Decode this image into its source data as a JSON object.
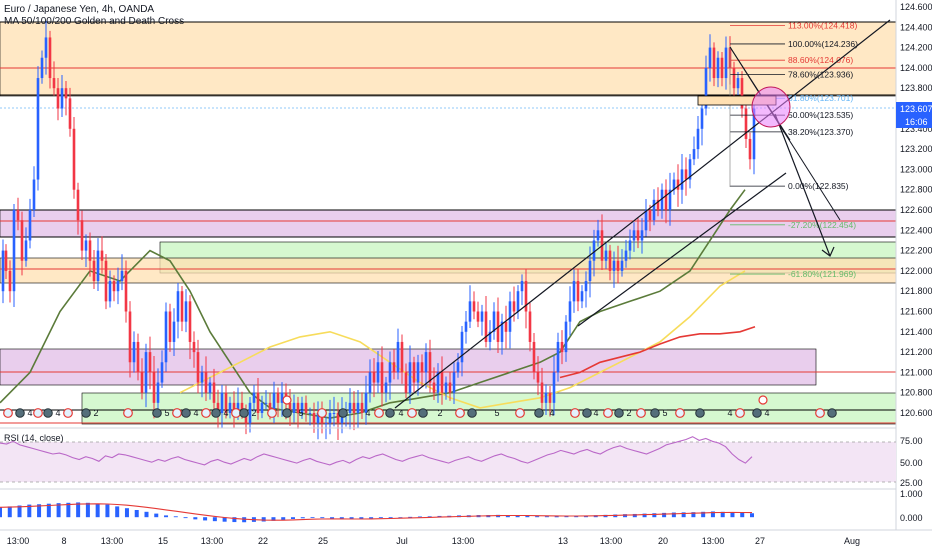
{
  "header": {
    "title": "Euro / Japanese Yen, 4h, OANDA",
    "indicator": "MA 50/100/200 Golden and Death Cross"
  },
  "rsi": {
    "label": "RSI (14, close)",
    "ticks": [
      "75.00",
      "50.00",
      "25.00"
    ]
  },
  "macd": {
    "ticks": [
      "1.000",
      "0.000"
    ]
  },
  "price_tag": {
    "value": "123.607",
    "countdown": "16:06"
  },
  "colors": {
    "up": "#2962ff",
    "down": "#f23645",
    "ma50": "#5b7b3a",
    "ma100": "#f7dc5b",
    "ma200": "#e53935",
    "orange_zone": "#ffe0b2",
    "purple_zone": "#e1bee7",
    "green_zone": "#c8f5c0"
  },
  "chart_data": {
    "type": "candlestick",
    "title": "Euro / Japanese Yen, 4h, OANDA",
    "y_ticks": [
      124.6,
      124.4,
      124.2,
      124.0,
      123.8,
      123.4,
      123.2,
      123.0,
      122.8,
      122.6,
      122.4,
      122.2,
      122.0,
      121.8,
      121.6,
      121.4,
      121.2,
      121.0,
      120.8,
      120.6
    ],
    "y_tick_labels": [
      "124.600",
      "124.400",
      "124.200",
      "124.000",
      "123.800",
      "123.400",
      "123.200",
      "123.000",
      "122.800",
      "122.600",
      "122.400",
      "122.200",
      "122.000",
      "121.800",
      "121.600",
      "121.400",
      "121.200",
      "121.000",
      "120.800",
      "120.600"
    ],
    "x_labels": [
      "13:00",
      "8",
      "13:00",
      "15",
      "13:00",
      "22",
      "25",
      "Jul",
      "13:00",
      "13",
      "13:00",
      "20",
      "13:00",
      "27",
      "Aug"
    ],
    "ylim": [
      120.5,
      124.65
    ],
    "close_path": [
      [
        0,
        121.8
      ],
      [
        3,
        122.2
      ],
      [
        6,
        122.0
      ],
      [
        10,
        121.8
      ],
      [
        14,
        122.6
      ],
      [
        18,
        122.5
      ],
      [
        22,
        122.1
      ],
      [
        26,
        122.3
      ],
      [
        30,
        122.6
      ],
      [
        34,
        122.9
      ],
      [
        38,
        123.9
      ],
      [
        42,
        124.1
      ],
      [
        46,
        124.3
      ],
      [
        50,
        123.9
      ],
      [
        54,
        123.8
      ],
      [
        58,
        123.6
      ],
      [
        62,
        123.8
      ],
      [
        66,
        123.7
      ],
      [
        70,
        123.4
      ],
      [
        74,
        122.8
      ],
      [
        78,
        122.5
      ],
      [
        82,
        122.2
      ],
      [
        86,
        122.3
      ],
      [
        90,
        122.1
      ],
      [
        94,
        121.9
      ],
      [
        98,
        122.2
      ],
      [
        102,
        122.1
      ],
      [
        106,
        121.7
      ],
      [
        110,
        121.9
      ],
      [
        114,
        121.8
      ],
      [
        118,
        121.9
      ],
      [
        122,
        122.0
      ],
      [
        126,
        121.6
      ],
      [
        130,
        121.1
      ],
      [
        134,
        121.3
      ],
      [
        138,
        121.0
      ],
      [
        142,
        120.8
      ],
      [
        146,
        121.2
      ],
      [
        150,
        121.0
      ],
      [
        154,
        120.7
      ],
      [
        158,
        120.9
      ],
      [
        162,
        121.1
      ],
      [
        166,
        121.6
      ],
      [
        170,
        121.3
      ],
      [
        174,
        121.5
      ],
      [
        178,
        121.8
      ],
      [
        182,
        121.5
      ],
      [
        186,
        121.7
      ],
      [
        190,
        121.3
      ],
      [
        194,
        121.2
      ],
      [
        198,
        120.9
      ],
      [
        202,
        121.0
      ],
      [
        206,
        120.8
      ],
      [
        210,
        120.9
      ],
      [
        214,
        120.7
      ],
      [
        218,
        120.6
      ],
      [
        222,
        120.8
      ],
      [
        226,
        120.6
      ],
      [
        230,
        120.7
      ],
      [
        234,
        120.6
      ],
      [
        238,
        120.7
      ],
      [
        242,
        120.6
      ],
      [
        246,
        120.5
      ],
      [
        250,
        120.7
      ],
      [
        254,
        120.8
      ],
      [
        258,
        120.6
      ],
      [
        262,
        120.7
      ],
      [
        266,
        120.7
      ],
      [
        270,
        120.6
      ],
      [
        274,
        120.8
      ],
      [
        278,
        120.7
      ],
      [
        282,
        120.8
      ],
      [
        286,
        120.7
      ],
      [
        290,
        120.6
      ],
      [
        294,
        120.7
      ],
      [
        298,
        120.6
      ],
      [
        302,
        120.7
      ],
      [
        306,
        120.6
      ],
      [
        310,
        120.6
      ],
      [
        314,
        120.5
      ],
      [
        318,
        120.6
      ],
      [
        322,
        120.5
      ],
      [
        326,
        120.5
      ],
      [
        330,
        120.6
      ],
      [
        334,
        120.6
      ],
      [
        338,
        120.5
      ],
      [
        342,
        120.6
      ],
      [
        346,
        120.6
      ],
      [
        350,
        120.7
      ],
      [
        354,
        120.6
      ],
      [
        358,
        120.7
      ],
      [
        362,
        120.6
      ],
      [
        366,
        120.8
      ],
      [
        370,
        121.0
      ],
      [
        374,
        120.9
      ],
      [
        378,
        121.1
      ],
      [
        382,
        120.8
      ],
      [
        386,
        120.9
      ],
      [
        390,
        121.1
      ],
      [
        394,
        121.0
      ],
      [
        398,
        121.3
      ],
      [
        402,
        121.0
      ],
      [
        406,
        120.8
      ],
      [
        410,
        121.1
      ],
      [
        414,
        120.9
      ],
      [
        418,
        121.1
      ],
      [
        422,
        121.0
      ],
      [
        426,
        121.2
      ],
      [
        430,
        120.9
      ],
      [
        434,
        120.8
      ],
      [
        438,
        121.0
      ],
      [
        442,
        120.8
      ],
      [
        446,
        120.9
      ],
      [
        450,
        120.8
      ],
      [
        454,
        121.0
      ],
      [
        458,
        121.1
      ],
      [
        462,
        121.4
      ],
      [
        466,
        121.5
      ],
      [
        470,
        121.7
      ],
      [
        474,
        121.6
      ],
      [
        478,
        121.5
      ],
      [
        482,
        121.6
      ],
      [
        486,
        121.3
      ],
      [
        490,
        121.4
      ],
      [
        494,
        121.6
      ],
      [
        498,
        121.3
      ],
      [
        502,
        121.5
      ],
      [
        506,
        121.4
      ],
      [
        510,
        121.7
      ],
      [
        514,
        121.6
      ],
      [
        518,
        121.8
      ],
      [
        522,
        121.9
      ],
      [
        526,
        121.6
      ],
      [
        530,
        121.3
      ],
      [
        534,
        121.0
      ],
      [
        538,
        120.9
      ],
      [
        542,
        120.7
      ],
      [
        546,
        120.8
      ],
      [
        550,
        120.7
      ],
      [
        554,
        121.0
      ],
      [
        558,
        121.3
      ],
      [
        562,
        121.2
      ],
      [
        566,
        121.5
      ],
      [
        570,
        121.7
      ],
      [
        574,
        121.9
      ],
      [
        578,
        121.7
      ],
      [
        582,
        121.8
      ],
      [
        586,
        121.9
      ],
      [
        590,
        122.1
      ],
      [
        594,
        122.3
      ],
      [
        598,
        122.4
      ],
      [
        602,
        122.1
      ],
      [
        606,
        122.2
      ],
      [
        610,
        122.0
      ],
      [
        614,
        122.1
      ],
      [
        618,
        122.0
      ],
      [
        622,
        122.1
      ],
      [
        626,
        122.2
      ],
      [
        630,
        122.3
      ],
      [
        634,
        122.4
      ],
      [
        638,
        122.3
      ],
      [
        642,
        122.4
      ],
      [
        646,
        122.6
      ],
      [
        650,
        122.5
      ],
      [
        654,
        122.7
      ],
      [
        658,
        122.6
      ],
      [
        662,
        122.8
      ],
      [
        666,
        122.6
      ],
      [
        670,
        122.8
      ],
      [
        674,
        122.9
      ],
      [
        678,
        122.8
      ],
      [
        682,
        123.0
      ],
      [
        686,
        122.9
      ],
      [
        690,
        123.1
      ],
      [
        694,
        123.2
      ],
      [
        698,
        123.4
      ],
      [
        702,
        123.6
      ],
      [
        706,
        124.0
      ],
      [
        710,
        124.2
      ],
      [
        714,
        123.9
      ],
      [
        718,
        124.1
      ],
      [
        722,
        123.9
      ],
      [
        726,
        124.2
      ],
      [
        730,
        124.0
      ],
      [
        734,
        123.8
      ],
      [
        738,
        123.9
      ],
      [
        742,
        123.6
      ],
      [
        746,
        123.3
      ],
      [
        750,
        123.1
      ],
      [
        754,
        123.6
      ]
    ],
    "moving_averages": [
      {
        "label": "MA 50",
        "points": [
          [
            0,
            120.7
          ],
          [
            30,
            121.0
          ],
          [
            60,
            121.6
          ],
          [
            90,
            122.0
          ],
          [
            120,
            121.9
          ],
          [
            150,
            122.2
          ],
          [
            170,
            122.1
          ],
          [
            190,
            121.8
          ],
          [
            210,
            121.4
          ],
          [
            230,
            121.1
          ],
          [
            250,
            120.8
          ],
          [
            270,
            120.65
          ],
          [
            300,
            120.6
          ],
          [
            330,
            120.55
          ],
          [
            360,
            120.6
          ],
          [
            390,
            120.7
          ],
          [
            420,
            120.75
          ],
          [
            450,
            120.8
          ],
          [
            480,
            120.9
          ],
          [
            510,
            121.0
          ],
          [
            540,
            121.1
          ],
          [
            560,
            121.2
          ],
          [
            580,
            121.5
          ],
          [
            600,
            121.6
          ],
          [
            630,
            121.7
          ],
          [
            660,
            121.8
          ],
          [
            690,
            122.0
          ],
          [
            710,
            122.3
          ],
          [
            730,
            122.6
          ],
          [
            745,
            122.8
          ]
        ]
      },
      {
        "label": "MA 100",
        "points": [
          [
            180,
            120.8
          ],
          [
            210,
            120.95
          ],
          [
            240,
            121.1
          ],
          [
            270,
            121.25
          ],
          [
            300,
            121.35
          ],
          [
            330,
            121.4
          ],
          [
            360,
            121.3
          ],
          [
            390,
            121.1
          ],
          [
            420,
            120.9
          ],
          [
            450,
            120.75
          ],
          [
            480,
            120.65
          ],
          [
            510,
            120.7
          ],
          [
            540,
            120.75
          ],
          [
            570,
            120.85
          ],
          [
            600,
            121.0
          ],
          [
            630,
            121.15
          ],
          [
            660,
            121.3
          ],
          [
            690,
            121.55
          ],
          [
            720,
            121.85
          ],
          [
            745,
            122.0
          ]
        ]
      },
      {
        "label": "MA 200",
        "points": [
          [
            560,
            120.95
          ],
          [
            580,
            121.0
          ],
          [
            600,
            121.1
          ],
          [
            620,
            121.15
          ],
          [
            640,
            121.2
          ],
          [
            660,
            121.28
          ],
          [
            680,
            121.35
          ],
          [
            700,
            121.38
          ],
          [
            720,
            121.38
          ],
          [
            740,
            121.4
          ],
          [
            755,
            121.45
          ]
        ]
      }
    ],
    "fibonacci": [
      {
        "level": "113.00%",
        "price": "124.418"
      },
      {
        "level": "100.00%",
        "price": "124.236"
      },
      {
        "level": "88.60%",
        "price": "124.076"
      },
      {
        "level": "78.60%",
        "price": "123.936"
      },
      {
        "level": "61.80%",
        "price": "123.701"
      },
      {
        "level": "50.00%",
        "price": "123.535"
      },
      {
        "level": "38.20%",
        "price": "123.370"
      },
      {
        "level": "0.00%",
        "price": "122.835"
      },
      {
        "level": "-27.20%",
        "price": "122.454"
      },
      {
        "level": "-61.80%",
        "price": "121.969"
      }
    ],
    "rsi_ylim": [
      25,
      80
    ],
    "rsi_values": [
      70,
      69,
      72,
      68,
      66,
      64,
      62,
      60,
      58,
      59,
      57,
      54,
      52,
      55,
      53,
      50,
      56,
      54,
      58,
      57,
      55,
      53,
      51,
      49,
      52,
      50,
      53,
      55,
      52,
      50,
      48,
      46,
      50,
      52,
      49,
      47,
      50,
      53,
      51,
      55,
      58,
      56,
      54,
      52,
      50,
      48,
      51,
      53,
      50,
      48,
      46,
      49,
      51,
      48,
      52,
      55,
      53,
      56,
      58,
      55,
      52,
      50,
      53,
      55,
      57,
      54,
      52,
      50,
      48,
      51,
      53,
      55,
      52,
      50,
      53,
      56,
      58,
      55,
      53,
      50,
      48,
      51,
      54,
      57,
      59,
      62,
      60,
      58,
      61,
      63,
      60,
      58,
      62,
      65,
      67,
      64,
      62,
      60,
      58,
      61,
      64,
      68,
      70,
      72,
      74,
      77,
      73,
      75,
      72,
      70,
      66,
      58,
      52,
      48,
      55
    ],
    "macd_ylim": [
      -0.6,
      1.4
    ],
    "macd_hist": [
      0.55,
      0.6,
      0.65,
      0.7,
      0.72,
      0.75,
      0.78,
      0.8,
      0.82,
      0.8,
      0.75,
      0.7,
      0.6,
      0.5,
      0.4,
      0.3,
      0.2,
      0.1,
      0.05,
      -0.05,
      -0.12,
      -0.18,
      -0.22,
      -0.25,
      -0.27,
      -0.28,
      -0.26,
      -0.24,
      -0.2,
      -0.15,
      -0.1,
      -0.06,
      -0.03,
      -0.05,
      -0.08,
      -0.1,
      -0.12,
      -0.1,
      -0.07,
      -0.04,
      -0.02,
      0.0,
      0.02,
      0.04,
      0.05,
      0.07,
      0.08,
      0.1,
      0.11,
      0.12,
      0.12,
      0.13,
      0.12,
      0.1,
      0.08,
      0.06,
      0.05,
      0.04,
      0.05,
      0.07,
      0.09,
      0.11,
      0.13,
      0.15,
      0.17,
      0.18,
      0.2,
      0.22,
      0.24,
      0.26,
      0.27,
      0.28,
      0.3,
      0.32,
      0.3,
      0.27,
      0.25,
      0.22
    ]
  }
}
